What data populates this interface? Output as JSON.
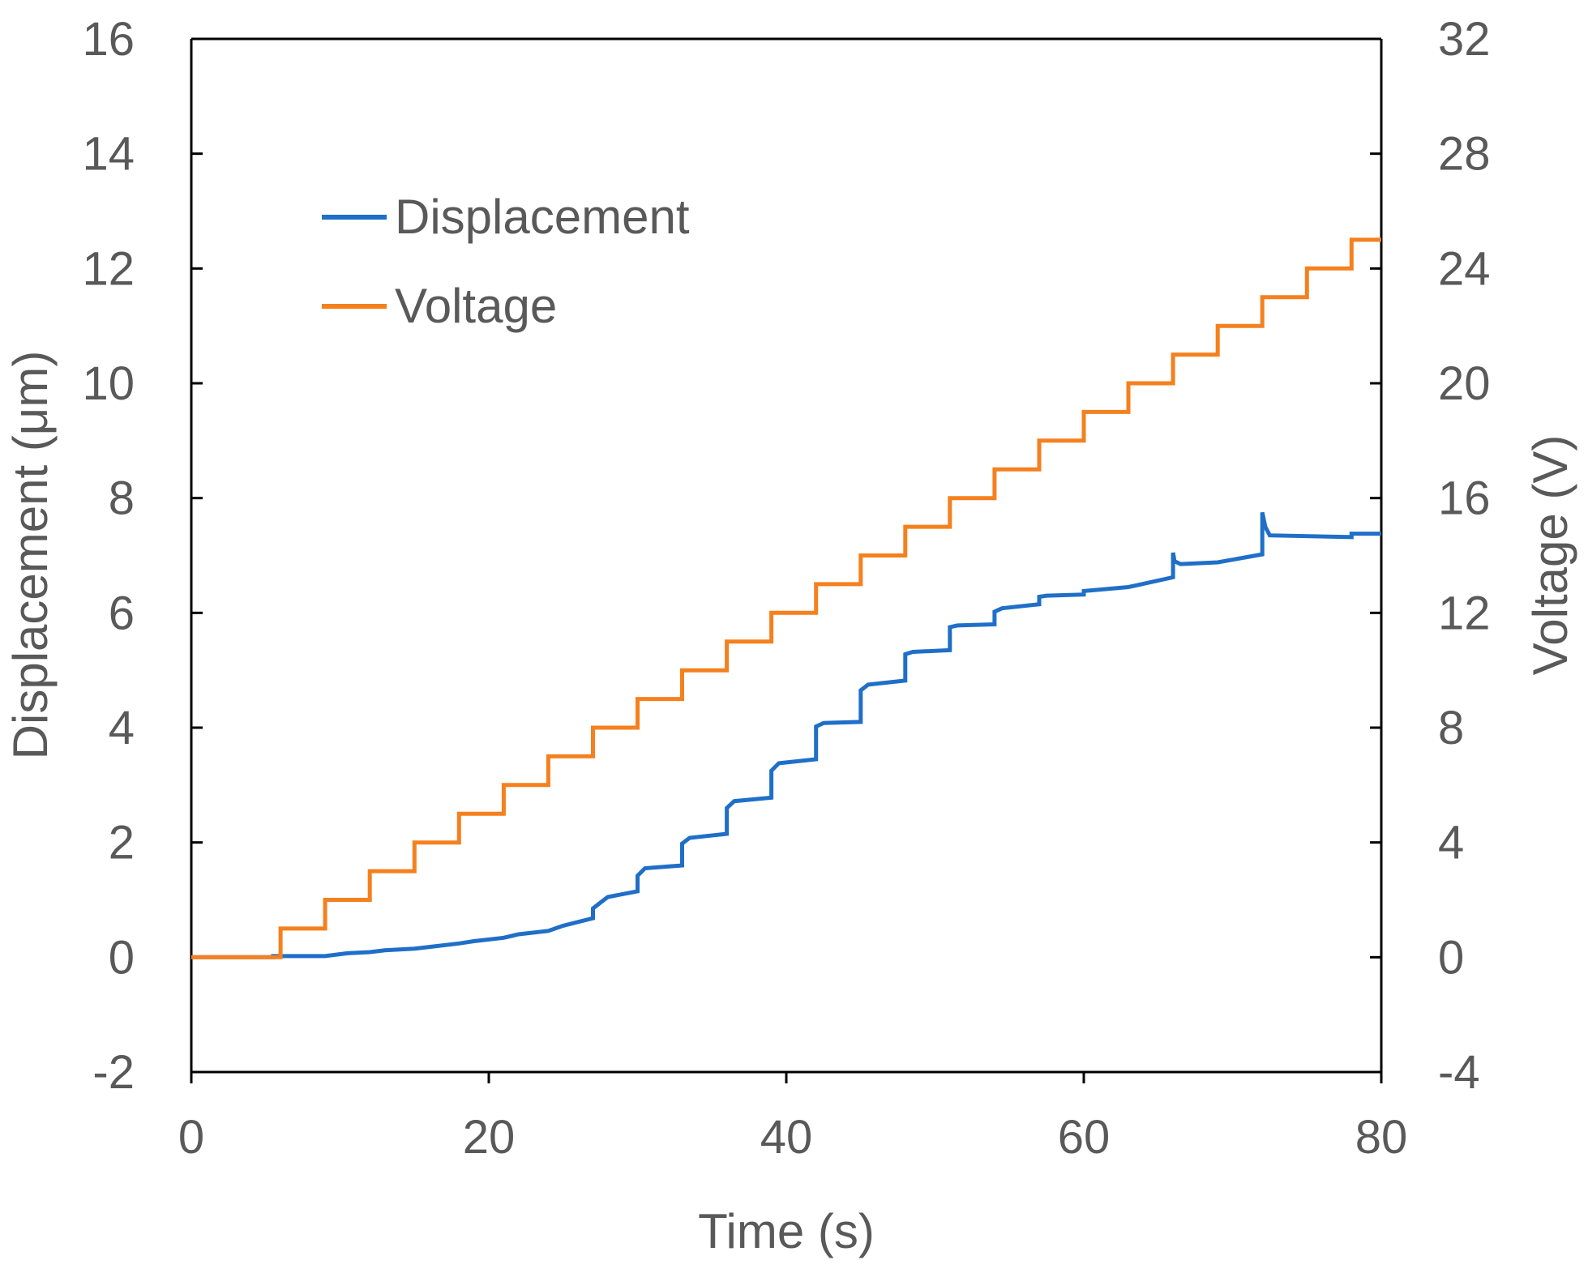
{
  "chart_data": {
    "type": "line",
    "title": "",
    "xlabel": "Time (s)",
    "ylabel": "Displacement (μm)",
    "y2label": "Voltage (V)",
    "xlim": [
      0,
      80
    ],
    "ylim": [
      -2,
      16
    ],
    "y2lim": [
      -4,
      32
    ],
    "xticks": [
      "0",
      "20",
      "40",
      "60",
      "80"
    ],
    "yticks": [
      "-2",
      "0",
      "2",
      "4",
      "6",
      "8",
      "10",
      "12",
      "14",
      "16"
    ],
    "y2ticks": [
      "-4",
      "0",
      "4",
      "8",
      "12",
      "16",
      "20",
      "24",
      "28",
      "32"
    ],
    "grid": false,
    "legend": {
      "position": "top-left"
    },
    "series": [
      {
        "name": "Displacement",
        "axis": "left",
        "color": "#1f6fc8",
        "points": [
          [
            0,
            0
          ],
          [
            5.5,
            0
          ],
          [
            5.5,
            0.02
          ],
          [
            9,
            0.02
          ],
          [
            10.5,
            0.07
          ],
          [
            12,
            0.09
          ],
          [
            13,
            0.12
          ],
          [
            15,
            0.15
          ],
          [
            16,
            0.18
          ],
          [
            18,
            0.24
          ],
          [
            19,
            0.28
          ],
          [
            21,
            0.34
          ],
          [
            22,
            0.4
          ],
          [
            24,
            0.46
          ],
          [
            25,
            0.55
          ],
          [
            27,
            0.68
          ],
          [
            27,
            0.85
          ],
          [
            27.5,
            0.95
          ],
          [
            28,
            1.05
          ],
          [
            30,
            1.15
          ],
          [
            30,
            1.42
          ],
          [
            30.5,
            1.55
          ],
          [
            33,
            1.6
          ],
          [
            33,
            1.98
          ],
          [
            33.5,
            2.08
          ],
          [
            36,
            2.15
          ],
          [
            36,
            2.6
          ],
          [
            36.5,
            2.72
          ],
          [
            39,
            2.78
          ],
          [
            39,
            3.25
          ],
          [
            39.5,
            3.38
          ],
          [
            42,
            3.45
          ],
          [
            42,
            4.02
          ],
          [
            42.5,
            4.08
          ],
          [
            45,
            4.1
          ],
          [
            45,
            4.65
          ],
          [
            45.5,
            4.75
          ],
          [
            48,
            4.82
          ],
          [
            48,
            5.28
          ],
          [
            48.5,
            5.32
          ],
          [
            51,
            5.35
          ],
          [
            51,
            5.75
          ],
          [
            51.5,
            5.78
          ],
          [
            54,
            5.8
          ],
          [
            54,
            6.02
          ],
          [
            54.5,
            6.08
          ],
          [
            57,
            6.15
          ],
          [
            57,
            6.28
          ],
          [
            57.5,
            6.3
          ],
          [
            60,
            6.32
          ],
          [
            60,
            6.38
          ],
          [
            63,
            6.45
          ],
          [
            66,
            6.62
          ],
          [
            66,
            7.05
          ],
          [
            66.1,
            6.9
          ],
          [
            66.5,
            6.85
          ],
          [
            69,
            6.88
          ],
          [
            72,
            7.02
          ],
          [
            72,
            7.75
          ],
          [
            72.2,
            7.5
          ],
          [
            72.5,
            7.35
          ],
          [
            78,
            7.32
          ],
          [
            78,
            7.38
          ],
          [
            80,
            7.38
          ]
        ]
      },
      {
        "name": "Voltage",
        "axis": "right",
        "color": "#f5801e",
        "step_width": 3,
        "step_height": 1,
        "step_start": 6,
        "points": [
          [
            0,
            0
          ],
          [
            6,
            0
          ],
          [
            6,
            1
          ],
          [
            9,
            1
          ],
          [
            9,
            2
          ],
          [
            12,
            2
          ],
          [
            12,
            3
          ],
          [
            15,
            3
          ],
          [
            15,
            4
          ],
          [
            18,
            4
          ],
          [
            18,
            5
          ],
          [
            21,
            5
          ],
          [
            21,
            6
          ],
          [
            24,
            6
          ],
          [
            24,
            7
          ],
          [
            27,
            7
          ],
          [
            27,
            8
          ],
          [
            30,
            8
          ],
          [
            30,
            9
          ],
          [
            33,
            9
          ],
          [
            33,
            10
          ],
          [
            36,
            10
          ],
          [
            36,
            11
          ],
          [
            39,
            11
          ],
          [
            39,
            12
          ],
          [
            42,
            12
          ],
          [
            42,
            13
          ],
          [
            45,
            13
          ],
          [
            45,
            14
          ],
          [
            48,
            14
          ],
          [
            48,
            15
          ],
          [
            51,
            15
          ],
          [
            51,
            16
          ],
          [
            54,
            16
          ],
          [
            54,
            17
          ],
          [
            57,
            17
          ],
          [
            57,
            18
          ],
          [
            60,
            18
          ],
          [
            60,
            19
          ],
          [
            63,
            19
          ],
          [
            63,
            20
          ],
          [
            66,
            20
          ],
          [
            66,
            21
          ],
          [
            69,
            21
          ],
          [
            69,
            22
          ],
          [
            72,
            22
          ],
          [
            72,
            23
          ],
          [
            75,
            23
          ],
          [
            75,
            24
          ],
          [
            78,
            24
          ],
          [
            78,
            25
          ],
          [
            80,
            25
          ]
        ]
      }
    ]
  }
}
